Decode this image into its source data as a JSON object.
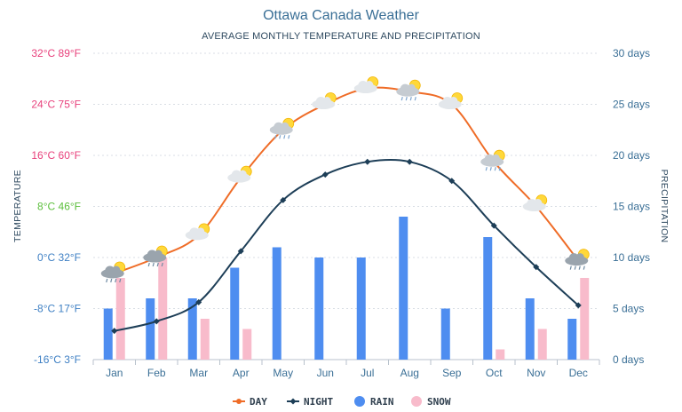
{
  "chart_data": {
    "type": "bar",
    "title": "Ottawa Canada Weather",
    "subtitle": "AVERAGE MONTHLY TEMPERATURE AND PRECIPITATION",
    "ylabel_left": "TEMPERATURE",
    "ylabel_right": "PRECIPITATION",
    "categories": [
      "Jan",
      "Feb",
      "Mar",
      "Apr",
      "May",
      "Jun",
      "Jul",
      "Aug",
      "Sep",
      "Oct",
      "Nov",
      "Dec"
    ],
    "temp_range": [
      -16,
      32
    ],
    "temp_ticks": [
      {
        "value": 32,
        "label": "32°C 89°F",
        "color": "#e8417c"
      },
      {
        "value": 24,
        "label": "24°C 75°F",
        "color": "#e8417c"
      },
      {
        "value": 16,
        "label": "16°C 60°F",
        "color": "#e8417c"
      },
      {
        "value": 8,
        "label": "8°C 46°F",
        "color": "#5cbf3c"
      },
      {
        "value": 0,
        "label": "0°C 32°F",
        "color": "#3f80c4"
      },
      {
        "value": -8,
        "label": "-8°C 17°F",
        "color": "#3f80c4"
      },
      {
        "value": -16,
        "label": "-16°C 3°F",
        "color": "#3f80c4"
      }
    ],
    "precip_range": [
      0,
      30
    ],
    "precip_ticks": [
      {
        "value": 30,
        "label": "30 days"
      },
      {
        "value": 25,
        "label": "25 days"
      },
      {
        "value": 20,
        "label": "20 days"
      },
      {
        "value": 15,
        "label": "15 days"
      },
      {
        "value": 10,
        "label": "10 days"
      },
      {
        "value": 5,
        "label": "5 days"
      },
      {
        "value": 0,
        "label": "0 days"
      }
    ],
    "series": [
      {
        "name": "DAY",
        "kind": "line",
        "axis": "temperature",
        "color": "#ef6c27",
        "values": [
          -2.5,
          0,
          3.5,
          12.5,
          20,
          24,
          26.5,
          26,
          24,
          15,
          8,
          -0.5
        ]
      },
      {
        "name": "NIGHT",
        "kind": "line",
        "axis": "temperature",
        "color": "#1d3e57",
        "values": [
          -11.5,
          -10,
          -7,
          1,
          9,
          13,
          15,
          15,
          12,
          5,
          -1.5,
          -7.5
        ]
      },
      {
        "name": "RAIN",
        "kind": "bar",
        "axis": "precipitation",
        "color": "#4e8df0",
        "values": [
          5,
          6,
          6,
          9,
          11,
          10,
          10,
          14,
          5,
          12,
          6,
          4
        ]
      },
      {
        "name": "SNOW",
        "kind": "bar",
        "axis": "precipitation",
        "color": "#f8bbcb",
        "values": [
          8,
          10,
          4,
          3,
          0,
          0,
          0,
          0,
          0,
          1,
          3,
          8
        ]
      }
    ],
    "weather_icons": [
      "snow-cloud-icon",
      "snow-cloud-icon",
      "partly-sunny-icon",
      "partly-sunny-icon",
      "rain-cloud-icon",
      "partly-sunny-icon",
      "partly-sunny-icon",
      "rain-cloud-icon",
      "partly-sunny-icon",
      "rain-cloud-icon",
      "partly-sunny-icon",
      "snow-cloud-icon"
    ],
    "grid": true,
    "legend_position": "bottom"
  }
}
